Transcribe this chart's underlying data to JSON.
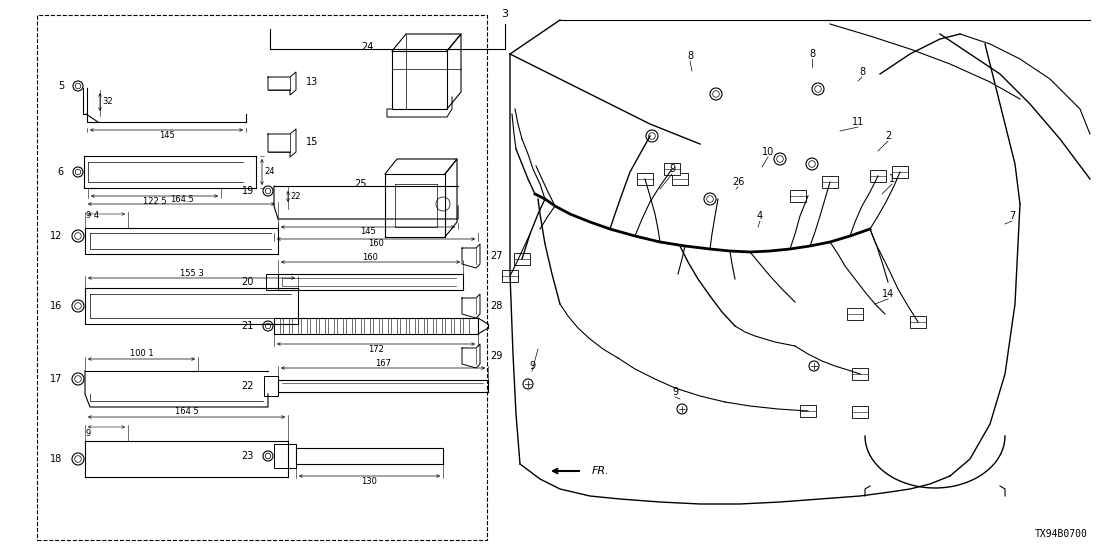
{
  "bg_color": "#ffffff",
  "line_color": "#000000",
  "fig_width": 11.08,
  "fig_height": 5.54,
  "dpi": 100,
  "diagram_code": "TX94B0700",
  "part_label": "3"
}
